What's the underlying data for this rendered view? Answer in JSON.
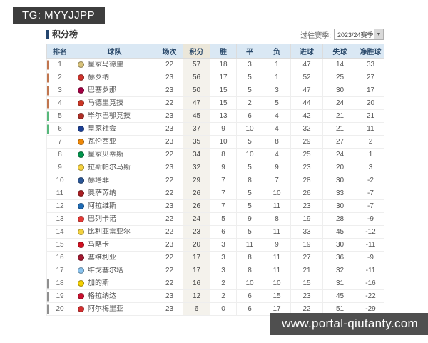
{
  "badge": {
    "text": "TG: MYYJJPP"
  },
  "panel": {
    "title": "积分榜",
    "season_label": "过往赛季:",
    "season_value": "2023/24赛季",
    "dropdown_arrow": "▼"
  },
  "table": {
    "headers": [
      "排名",
      "球队",
      "场次",
      "积分",
      "胜",
      "平",
      "负",
      "进球",
      "失球",
      "净胜球"
    ],
    "rows": [
      {
        "rank": "1",
        "team": "皇家马德里",
        "played": "22",
        "points": "57",
        "win": "18",
        "draw": "3",
        "loss": "1",
        "gf": "47",
        "ga": "14",
        "gd": "33",
        "zone": "ucl",
        "crest": "#d8c27a"
      },
      {
        "rank": "2",
        "team": "赫罗纳",
        "played": "23",
        "points": "56",
        "win": "17",
        "draw": "5",
        "loss": "1",
        "gf": "52",
        "ga": "25",
        "gd": "27",
        "zone": "ucl",
        "crest": "#d0342c"
      },
      {
        "rank": "3",
        "team": "巴塞罗那",
        "played": "23",
        "points": "50",
        "win": "15",
        "draw": "5",
        "loss": "3",
        "gf": "47",
        "ga": "30",
        "gd": "17",
        "zone": "ucl",
        "crest": "#a50044"
      },
      {
        "rank": "4",
        "team": "马德里竞技",
        "played": "22",
        "points": "47",
        "win": "15",
        "draw": "2",
        "loss": "5",
        "gf": "44",
        "ga": "24",
        "gd": "20",
        "zone": "ucl",
        "crest": "#cb3524"
      },
      {
        "rank": "5",
        "team": "毕尔巴鄂竞技",
        "played": "23",
        "points": "45",
        "win": "13",
        "draw": "6",
        "loss": "4",
        "gf": "42",
        "ga": "21",
        "gd": "21",
        "zone": "uel",
        "crest": "#ae2e26"
      },
      {
        "rank": "6",
        "team": "皇家社会",
        "played": "23",
        "points": "37",
        "win": "9",
        "draw": "10",
        "loss": "4",
        "gf": "32",
        "ga": "21",
        "gd": "11",
        "zone": "uel",
        "crest": "#1c3f94"
      },
      {
        "rank": "7",
        "team": "瓦伦西亚",
        "played": "23",
        "points": "35",
        "win": "10",
        "draw": "5",
        "loss": "8",
        "gf": "29",
        "ga": "27",
        "gd": "2",
        "zone": "",
        "crest": "#ee8707"
      },
      {
        "rank": "8",
        "team": "皇家贝蒂斯",
        "played": "22",
        "points": "34",
        "win": "8",
        "draw": "10",
        "loss": "4",
        "gf": "25",
        "ga": "24",
        "gd": "1",
        "zone": "",
        "crest": "#00954c"
      },
      {
        "rank": "9",
        "team": "拉斯帕尔马斯",
        "played": "23",
        "points": "32",
        "win": "9",
        "draw": "5",
        "loss": "9",
        "gf": "23",
        "ga": "20",
        "gd": "3",
        "zone": "",
        "crest": "#f7d340"
      },
      {
        "rank": "10",
        "team": "赫塔菲",
        "played": "22",
        "points": "29",
        "win": "7",
        "draw": "8",
        "loss": "7",
        "gf": "28",
        "ga": "30",
        "gd": "-2",
        "zone": "",
        "crest": "#2b5797"
      },
      {
        "rank": "11",
        "team": "奥萨苏纳",
        "played": "22",
        "points": "26",
        "win": "7",
        "draw": "5",
        "loss": "10",
        "gf": "26",
        "ga": "33",
        "gd": "-7",
        "zone": "",
        "crest": "#aa1e22"
      },
      {
        "rank": "12",
        "team": "阿拉维斯",
        "played": "23",
        "points": "26",
        "win": "7",
        "draw": "5",
        "loss": "11",
        "gf": "23",
        "ga": "30",
        "gd": "-7",
        "zone": "",
        "crest": "#1f6bb4"
      },
      {
        "rank": "13",
        "team": "巴列卡诺",
        "played": "22",
        "points": "24",
        "win": "5",
        "draw": "9",
        "loss": "8",
        "gf": "19",
        "ga": "28",
        "gd": "-9",
        "zone": "",
        "crest": "#e53935"
      },
      {
        "rank": "14",
        "team": "比利亚雷亚尔",
        "played": "22",
        "points": "23",
        "win": "6",
        "draw": "5",
        "loss": "11",
        "gf": "33",
        "ga": "45",
        "gd": "-12",
        "zone": "",
        "crest": "#f2d13e"
      },
      {
        "rank": "15",
        "team": "马略卡",
        "played": "23",
        "points": "20",
        "win": "3",
        "draw": "11",
        "loss": "9",
        "gf": "19",
        "ga": "30",
        "gd": "-11",
        "zone": "",
        "crest": "#cf1020"
      },
      {
        "rank": "16",
        "team": "塞维利亚",
        "played": "22",
        "points": "17",
        "win": "3",
        "draw": "8",
        "loss": "11",
        "gf": "27",
        "ga": "36",
        "gd": "-9",
        "zone": "",
        "crest": "#a3182f"
      },
      {
        "rank": "17",
        "team": "维戈塞尔塔",
        "played": "22",
        "points": "17",
        "win": "3",
        "draw": "8",
        "loss": "11",
        "gf": "21",
        "ga": "32",
        "gd": "-11",
        "zone": "",
        "crest": "#8ac3ee"
      },
      {
        "rank": "18",
        "team": "加的斯",
        "played": "22",
        "points": "16",
        "win": "2",
        "draw": "10",
        "loss": "10",
        "gf": "15",
        "ga": "31",
        "gd": "-16",
        "zone": "relegation",
        "crest": "#f5d000"
      },
      {
        "rank": "19",
        "team": "格拉纳达",
        "played": "23",
        "points": "12",
        "win": "2",
        "draw": "6",
        "loss": "15",
        "gf": "23",
        "ga": "45",
        "gd": "-22",
        "zone": "relegation",
        "crest": "#c8102e"
      },
      {
        "rank": "20",
        "team": "阿尔梅里亚",
        "played": "23",
        "points": "6",
        "win": "0",
        "draw": "6",
        "loss": "17",
        "gf": "22",
        "ga": "51",
        "gd": "-29",
        "zone": "relegation",
        "crest": "#d32f2f"
      }
    ]
  },
  "watermark": {
    "text": "www.portal-qiutanty.com"
  },
  "colors": {
    "accent_bar": "#24456e",
    "header_bg": "#dae8f4",
    "points_header_bg": "#ebe7da",
    "points_col_bg": "#f4f2ec",
    "badge_bg": "#3d3d3d",
    "watermark_bg": "#4f4f4f",
    "zones": {
      "ucl": "#c1764f",
      "uel": "#57b87b",
      "relegation": "#8f8f8f",
      "": ""
    }
  }
}
